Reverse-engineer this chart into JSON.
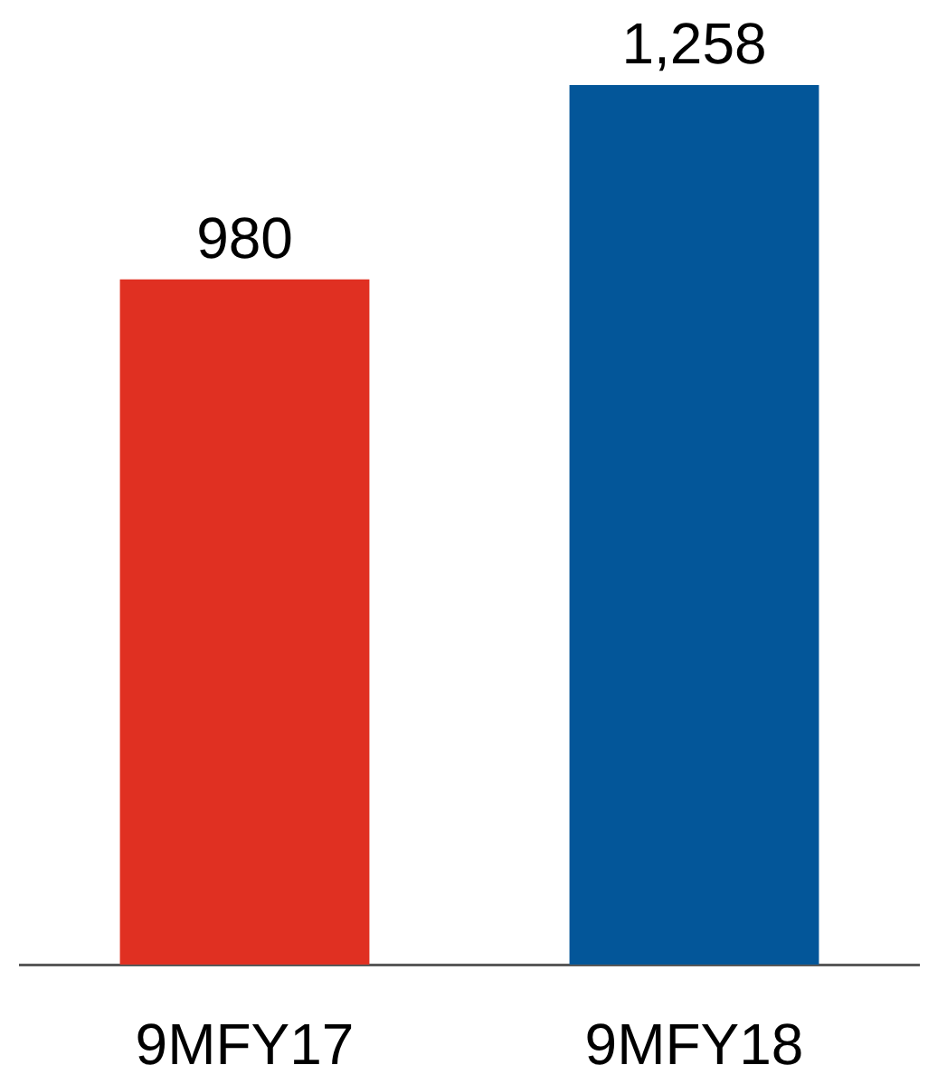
{
  "chart_data": {
    "type": "bar",
    "categories": [
      "9MFY17",
      "9MFY18"
    ],
    "values": [
      980,
      1258
    ],
    "colors": [
      "#e03022",
      "#035699"
    ],
    "value_labels": [
      "980",
      "1,258"
    ]
  }
}
